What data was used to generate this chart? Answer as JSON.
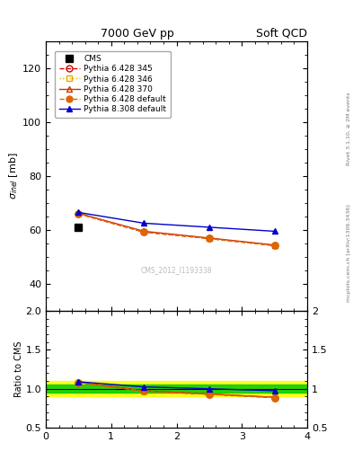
{
  "title_left": "7000 GeV pp",
  "title_right": "Soft QCD",
  "ylabel_main": "$\\sigma_{inel}$ [mb]",
  "ylabel_ratio": "Ratio to CMS",
  "right_label_top": "Rivet 3.1.10, ≥ 2M events",
  "right_label_bot": "mcplots.cern.ch [arXiv:1306.3436]",
  "watermark": "CMS_2012_I1193338",
  "xlim": [
    0,
    4
  ],
  "ylim_main": [
    30,
    130
  ],
  "ylim_ratio": [
    0.5,
    2.0
  ],
  "yticks_main": [
    40,
    60,
    80,
    100,
    120
  ],
  "yticks_ratio": [
    0.5,
    1.0,
    1.5,
    2.0
  ],
  "xticks": [
    0,
    1,
    2,
    3,
    4
  ],
  "cms_x": [
    0.5
  ],
  "cms_y": [
    61.0
  ],
  "series": [
    {
      "label": "Pythia 6.428 345",
      "color": "#dd0000",
      "linestyle": "--",
      "marker": "o",
      "markerfacecolor": "none",
      "x": [
        0.5,
        1.5,
        2.5,
        3.5
      ],
      "y": [
        66.0,
        59.2,
        56.8,
        54.2
      ],
      "ratio": [
        1.082,
        0.97,
        0.93,
        0.887
      ]
    },
    {
      "label": "Pythia 6.428 346",
      "color": "#ddaa00",
      "linestyle": ":",
      "marker": "s",
      "markerfacecolor": "none",
      "x": [
        0.5,
        1.5,
        2.5,
        3.5
      ],
      "y": [
        66.0,
        59.2,
        56.8,
        54.2
      ],
      "ratio": [
        1.082,
        0.97,
        0.93,
        0.887
      ]
    },
    {
      "label": "Pythia 6.428 370",
      "color": "#cc3300",
      "linestyle": "-",
      "marker": "^",
      "markerfacecolor": "none",
      "x": [
        0.5,
        1.5,
        2.5,
        3.5
      ],
      "y": [
        66.2,
        59.5,
        57.0,
        54.4
      ],
      "ratio": [
        1.085,
        0.975,
        0.934,
        0.891
      ]
    },
    {
      "label": "Pythia 6.428 default",
      "color": "#dd6600",
      "linestyle": "--",
      "marker": "o",
      "markerfacecolor": "#dd6600",
      "x": [
        0.5,
        1.5,
        2.5,
        3.5
      ],
      "y": [
        66.0,
        59.2,
        56.8,
        54.2
      ],
      "ratio": [
        1.082,
        0.97,
        0.93,
        0.887
      ]
    },
    {
      "label": "Pythia 8.308 default",
      "color": "#0000cc",
      "linestyle": "-",
      "marker": "^",
      "markerfacecolor": "#0000cc",
      "x": [
        0.5,
        1.5,
        2.5,
        3.5
      ],
      "y": [
        66.5,
        62.5,
        61.0,
        59.5
      ],
      "ratio": [
        1.09,
        1.024,
        1.0,
        0.975
      ]
    }
  ],
  "cms_error_green": 0.05,
  "cms_error_yellow": 0.1
}
